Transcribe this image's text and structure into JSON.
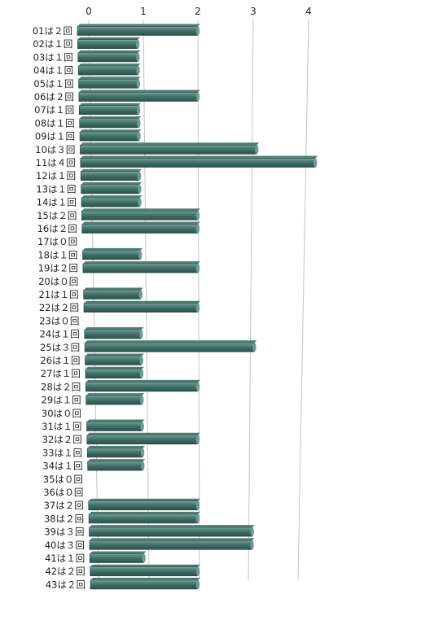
{
  "chart_data": {
    "type": "bar",
    "orientation": "horizontal",
    "style": "3d-perspective",
    "bar_color": "#3d6b63",
    "bar_highlight": "#8fb6ae",
    "grid": true,
    "xlim": [
      0,
      4
    ],
    "x_ticks": [
      "0",
      "1",
      "2",
      "3",
      "4"
    ],
    "categories": [
      "01は２回",
      "02は１回",
      "03は１回",
      "04は１回",
      "05は１回",
      "06は２回",
      "07は１回",
      "08は１回",
      "09は１回",
      "10は３回",
      "11は４回",
      "12は１回",
      "13は１回",
      "14は１回",
      "15は２回",
      "16は２回",
      "17は０回",
      "18は１回",
      "19は２回",
      "20は０回",
      "21は１回",
      "22は２回",
      "23は０回",
      "24は１回",
      "25は３回",
      "26は１回",
      "27は１回",
      "28は２回",
      "29は１回",
      "30は０回",
      "31は１回",
      "32は２回",
      "33は１回",
      "34は１回",
      "35は０回",
      "36は０回",
      "37は２回",
      "38は２回",
      "39は３回",
      "40は３回",
      "41は１回",
      "42は２回",
      "43は２回"
    ],
    "values": [
      2,
      1,
      1,
      1,
      1,
      2,
      1,
      1,
      1,
      3,
      4,
      1,
      1,
      1,
      2,
      2,
      0,
      1,
      2,
      0,
      1,
      2,
      0,
      1,
      3,
      1,
      1,
      2,
      1,
      0,
      1,
      2,
      1,
      1,
      0,
      0,
      2,
      2,
      3,
      3,
      1,
      2,
      2
    ]
  }
}
